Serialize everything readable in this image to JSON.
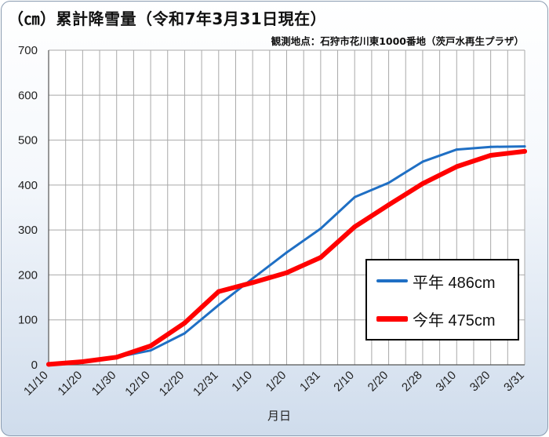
{
  "title": "（㎝）累計降雪量（令和7年3月31日現在）",
  "subtitle": "観測地点：石狩市花川東1000番地（茨戸水再生プラザ）",
  "colors": {
    "normal": "#1f6fc4",
    "current": "#ff0000",
    "grid": "#a9a9a9"
  },
  "chart_data": {
    "type": "line",
    "xlabel": "月日",
    "ylabel": "",
    "ylim": [
      0,
      700
    ],
    "yticks": [
      0,
      100,
      200,
      300,
      400,
      500,
      600,
      700
    ],
    "categories": [
      "11/10",
      "11/20",
      "11/30",
      "12/10",
      "12/20",
      "12/31",
      "1/10",
      "1/20",
      "1/31",
      "2/10",
      "2/20",
      "2/28",
      "3/10",
      "3/20",
      "3/31"
    ],
    "grid": true,
    "legend_position": "bottom-right",
    "series": [
      {
        "name": "平年",
        "legend_label": "平年 486cm",
        "color": "#1f6fc4",
        "values": [
          0,
          5,
          17,
          32,
          70,
          133,
          192,
          250,
          303,
          373,
          405,
          452,
          479,
          485,
          486
        ]
      },
      {
        "name": "今年",
        "legend_label": "今年 475cm",
        "color": "#ff0000",
        "values": [
          1,
          7,
          17,
          42,
          93,
          163,
          183,
          205,
          239,
          307,
          356,
          403,
          441,
          466,
          475
        ]
      }
    ]
  }
}
